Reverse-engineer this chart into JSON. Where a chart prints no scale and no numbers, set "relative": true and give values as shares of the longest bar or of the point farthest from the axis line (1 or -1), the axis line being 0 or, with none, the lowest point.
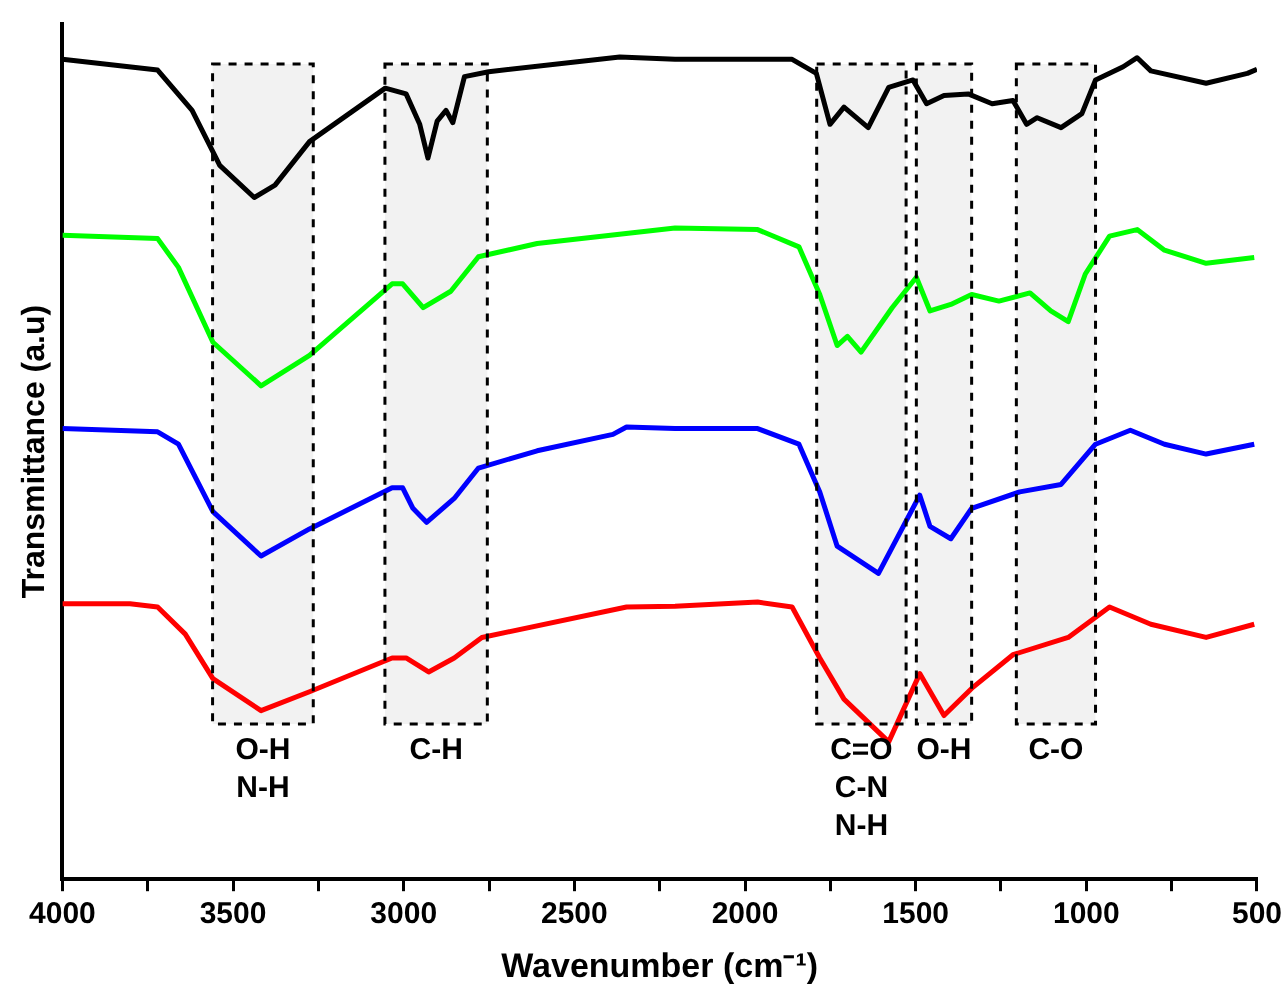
{
  "chart_data": {
    "type": "line",
    "relative": true,
    "xlabel": "Wavenumber (cm⁻¹)",
    "ylabel": "Transmittance (a.u)",
    "xlim": [
      4000,
      500
    ],
    "xticks": [
      4000,
      {
        "value": 3750,
        "label": null
      },
      3500,
      {
        "value": 3250,
        "label": null
      },
      3000,
      {
        "value": 2750,
        "label": null
      },
      2500,
      {
        "value": 2250,
        "label": null
      },
      2000,
      {
        "value": 1750,
        "label": null
      },
      1500,
      {
        "value": 1250,
        "label": null
      },
      1000,
      {
        "value": 750,
        "label": null
      },
      500
    ],
    "grid": false,
    "legend": false,
    "series": [
      {
        "color": "#000000",
        "x": [
          4000,
          3721,
          3620,
          3539,
          3438,
          3377,
          3276,
          3054,
          2993,
          2953,
          2929,
          2902,
          2876,
          2856,
          2822,
          2751,
          2367,
          2205,
          1862,
          1791,
          1751,
          1710,
          1639,
          1579,
          1508,
          1468,
          1417,
          1346,
          1276,
          1215,
          1175,
          1144,
          1074,
          1013,
          973,
          892,
          851,
          811,
          649,
          528,
          500
        ],
        "values": [
          0.997,
          0.984,
          0.935,
          0.868,
          0.829,
          0.844,
          0.897,
          0.962,
          0.955,
          0.918,
          0.877,
          0.922,
          0.935,
          0.92,
          0.976,
          0.982,
          1.0,
          0.997,
          0.997,
          0.98,
          0.918,
          0.939,
          0.914,
          0.963,
          0.972,
          0.943,
          0.953,
          0.955,
          0.943,
          0.947,
          0.918,
          0.926,
          0.914,
          0.931,
          0.972,
          0.988,
          0.999,
          0.983,
          0.968,
          0.98,
          0.985
        ]
      },
      {
        "color": "#00ff00",
        "x": [
          4000,
          3721,
          3660,
          3559,
          3418,
          3276,
          3034,
          3003,
          2943,
          2862,
          2781,
          2609,
          2205,
          1963,
          1842,
          1781,
          1730,
          1700,
          1660,
          1569,
          1498,
          1458,
          1397,
          1336,
          1256,
          1165,
          1104,
          1053,
          1003,
          932,
          851,
          771,
          649,
          508
        ],
        "values": [
          0.783,
          0.779,
          0.744,
          0.653,
          0.6,
          0.637,
          0.724,
          0.724,
          0.695,
          0.715,
          0.757,
          0.773,
          0.792,
          0.79,
          0.769,
          0.711,
          0.649,
          0.66,
          0.641,
          0.695,
          0.732,
          0.691,
          0.699,
          0.711,
          0.703,
          0.713,
          0.691,
          0.678,
          0.736,
          0.782,
          0.79,
          0.765,
          0.749,
          0.756
        ]
      },
      {
        "color": "#0000ff",
        "x": [
          4000,
          3721,
          3660,
          3559,
          3418,
          3276,
          3034,
          3003,
          2973,
          2933,
          2852,
          2781,
          2609,
          2387,
          2347,
          2205,
          1963,
          1842,
          1781,
          1730,
          1609,
          1488,
          1458,
          1397,
          1336,
          1195,
          1074,
          973,
          871,
          771,
          649,
          508
        ],
        "values": [
          0.548,
          0.544,
          0.529,
          0.447,
          0.393,
          0.426,
          0.476,
          0.476,
          0.451,
          0.434,
          0.463,
          0.5,
          0.521,
          0.541,
          0.55,
          0.548,
          0.548,
          0.529,
          0.471,
          0.405,
          0.372,
          0.467,
          0.429,
          0.414,
          0.451,
          0.471,
          0.48,
          0.529,
          0.546,
          0.529,
          0.517,
          0.529
        ]
      },
      {
        "color": "#ff0000",
        "x": [
          4000,
          3802,
          3721,
          3640,
          3559,
          3418,
          3276,
          3034,
          2993,
          2927,
          2852,
          2771,
          2347,
          2205,
          1963,
          1862,
          1781,
          1710,
          1579,
          1488,
          1417,
          1336,
          1215,
          1053,
          932,
          811,
          649,
          508
        ],
        "values": [
          0.335,
          0.335,
          0.331,
          0.298,
          0.244,
          0.205,
          0.228,
          0.269,
          0.269,
          0.252,
          0.269,
          0.294,
          0.331,
          0.332,
          0.337,
          0.331,
          0.269,
          0.219,
          0.167,
          0.25,
          0.199,
          0.232,
          0.273,
          0.294,
          0.331,
          0.31,
          0.294,
          0.31
        ]
      }
    ],
    "bands": [
      {
        "axis": "x",
        "from": 3560,
        "to": 3265,
        "label": "O-H\nN-H"
      },
      {
        "axis": "x",
        "from": 3055,
        "to": 2755,
        "label": "C-H"
      },
      {
        "axis": "x",
        "from": 1790,
        "to": 1528,
        "label": "C=O\nC-N\nN-H"
      },
      {
        "axis": "x",
        "from": 1498,
        "to": 1336,
        "label": "O-H"
      },
      {
        "axis": "x",
        "from": 1205,
        "to": 973,
        "label": "C-O"
      }
    ]
  }
}
